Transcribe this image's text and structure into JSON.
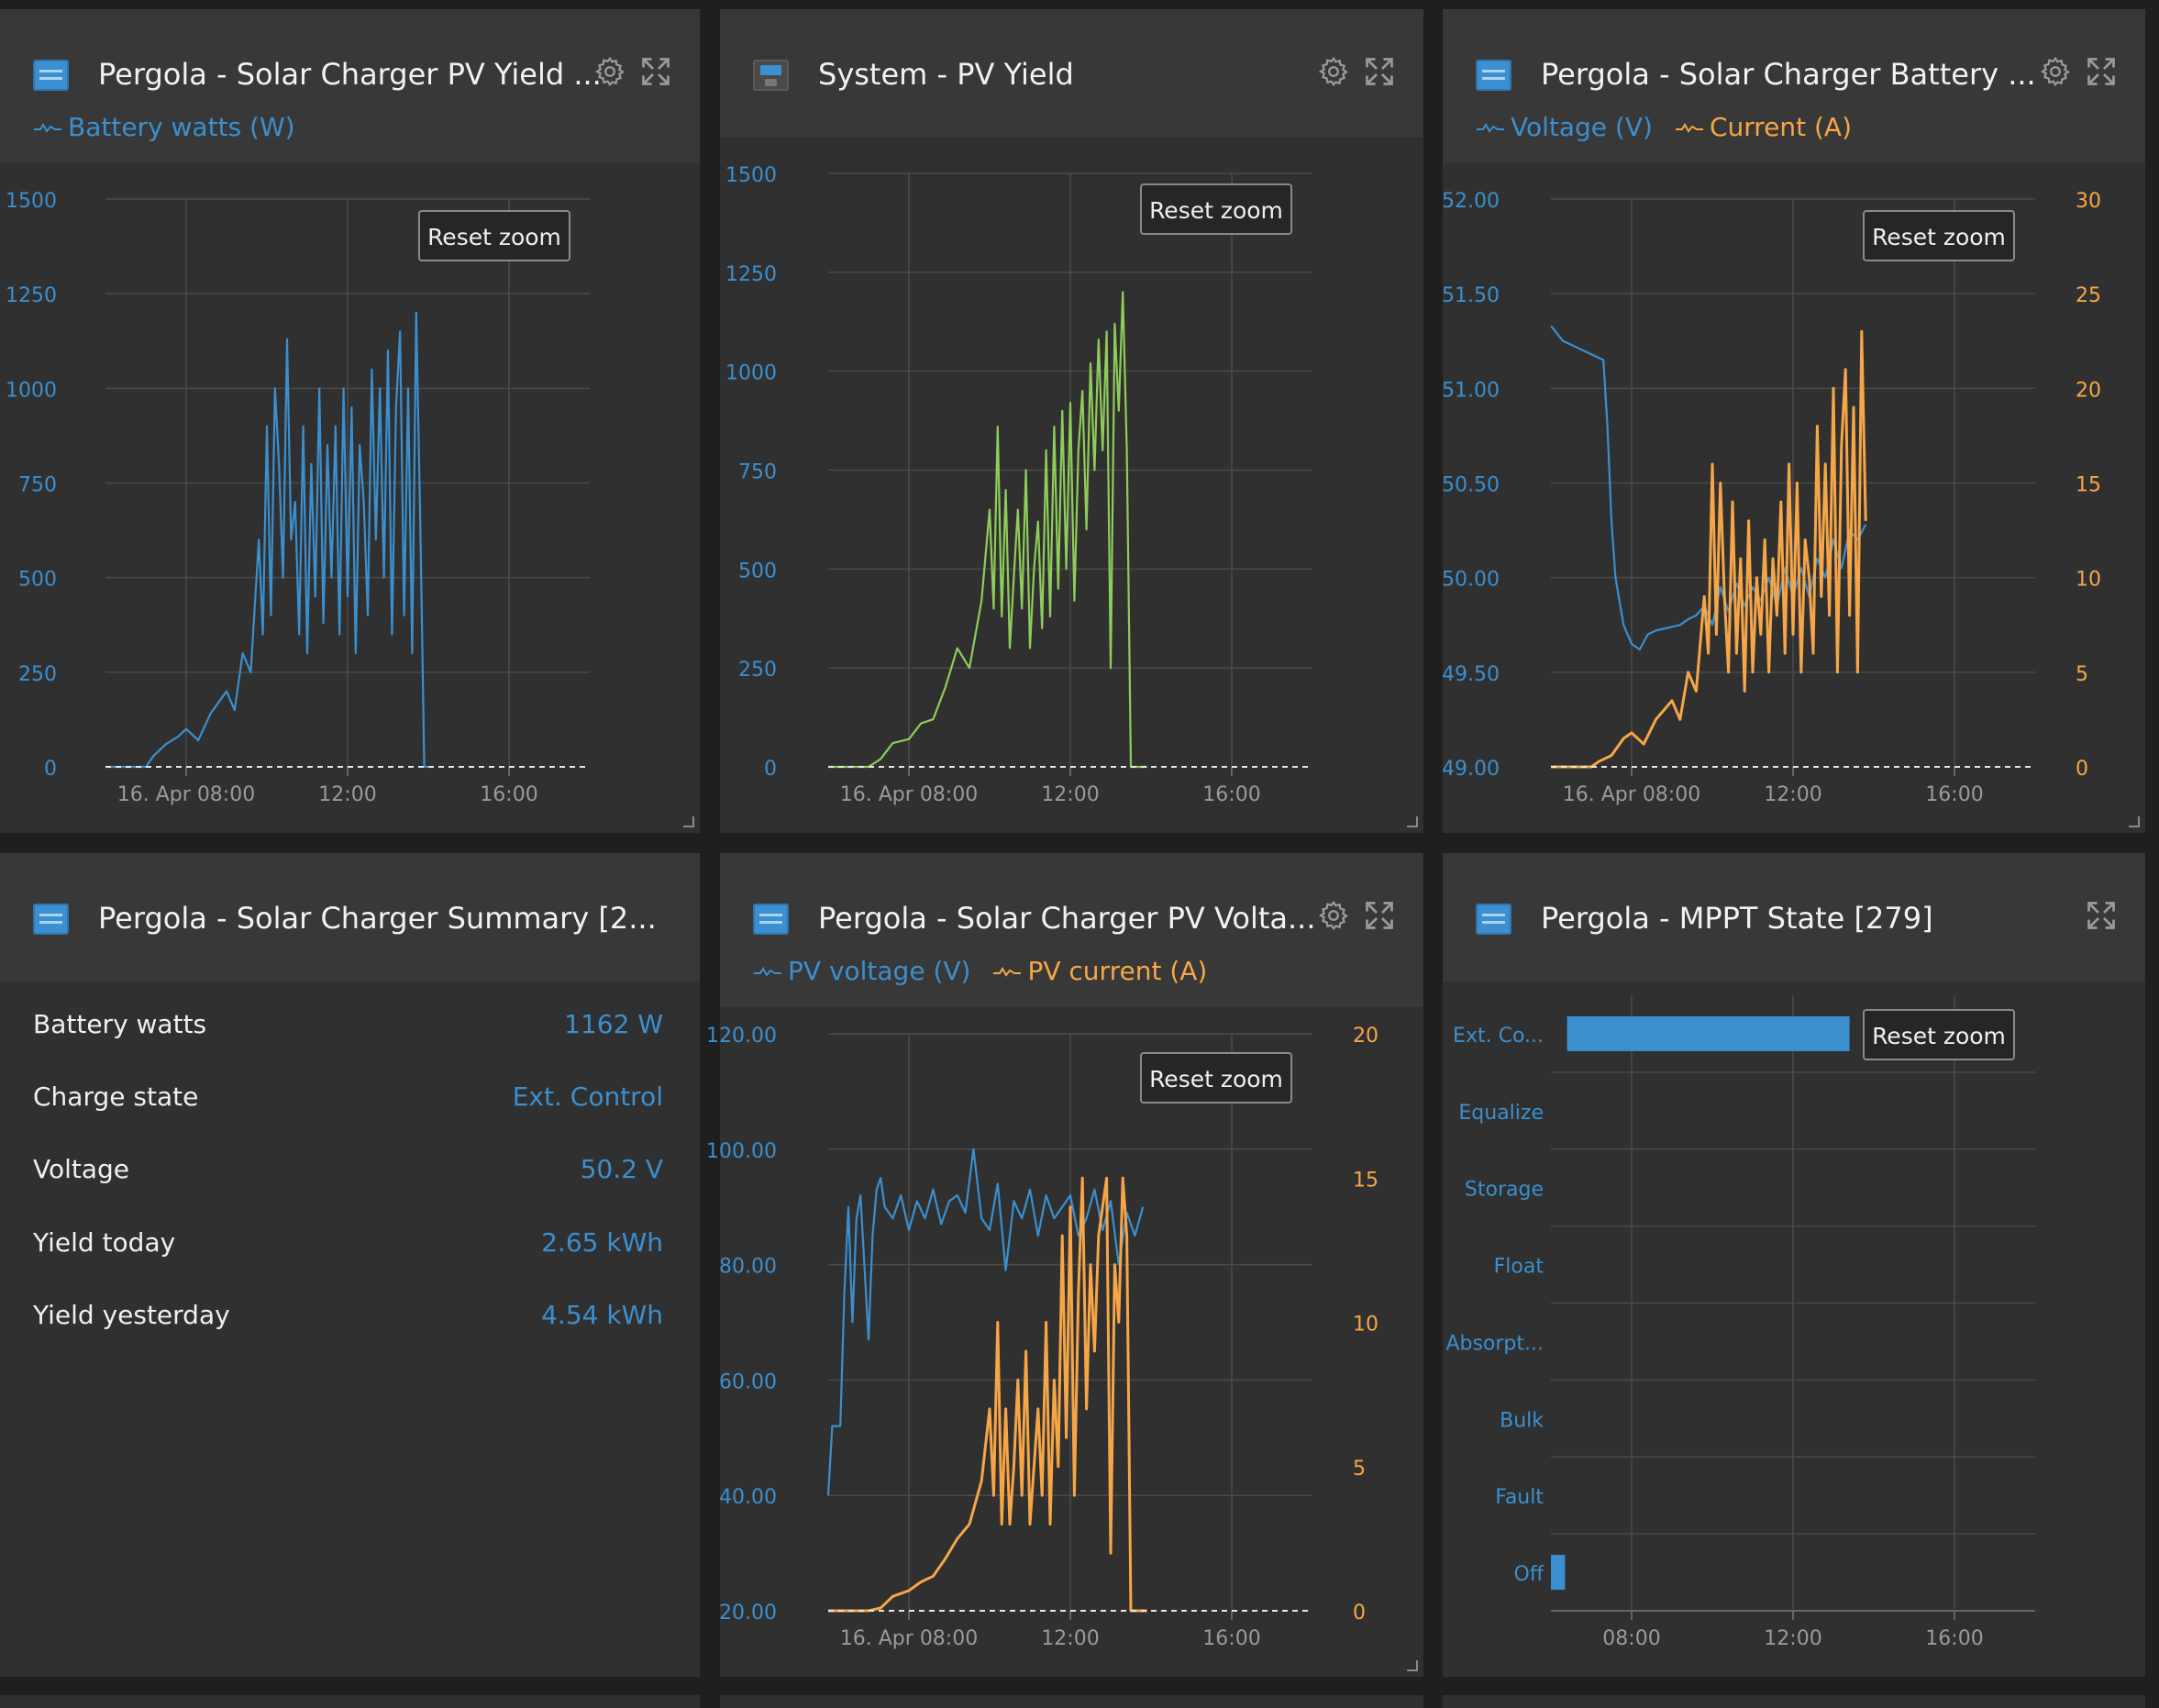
{
  "colors": {
    "blue": "#3b8fce",
    "orange": "#f7a647",
    "green": "#8fcc5a",
    "grid": "#4a4a4a",
    "axis_text_blue": "#3b8fce"
  },
  "widgets": {
    "pv_yield": {
      "title": "Pergola - Solar Charger PV Yield ...",
      "icon": "solar-charger-icon",
      "legend": [
        {
          "label": "Battery watts (W)",
          "color": "#3b8fce"
        }
      ],
      "reset_label": "Reset zoom"
    },
    "system_pv": {
      "title": "System - PV Yield",
      "icon": "system-icon",
      "reset_label": "Reset zoom"
    },
    "battery": {
      "title": "Pergola - Solar Charger Battery ...",
      "icon": "solar-charger-icon",
      "legend": [
        {
          "label": "Voltage (V)",
          "color": "#3b8fce"
        },
        {
          "label": "Current (A)",
          "color": "#f7a647"
        }
      ],
      "reset_label": "Reset zoom"
    },
    "summary": {
      "title": "Pergola - Solar Charger Summary [2...",
      "icon": "solar-charger-icon",
      "rows": [
        {
          "label": "Battery watts",
          "value": "1162 W"
        },
        {
          "label": "Charge state",
          "value": "Ext. Control"
        },
        {
          "label": "Voltage",
          "value": "50.2 V"
        },
        {
          "label": "Yield today",
          "value": "2.65 kWh"
        },
        {
          "label": "Yield yesterday",
          "value": "4.54 kWh"
        }
      ]
    },
    "pv_voltage": {
      "title": "Pergola - Solar Charger PV Volta...",
      "icon": "solar-charger-icon",
      "legend": [
        {
          "label": "PV voltage (V)",
          "color": "#3b8fce"
        },
        {
          "label": "PV current (A)",
          "color": "#f7a647"
        }
      ],
      "reset_label": "Reset zoom"
    },
    "mppt": {
      "title": "Pergola - MPPT State [279]",
      "icon": "solar-charger-icon",
      "reset_label": "Reset zoom"
    }
  },
  "chart_data": [
    {
      "id": "pv_yield",
      "type": "line",
      "title": "Pergola - Solar Charger PV Yield ...",
      "x_tick_labels": [
        "16. Apr 08:00",
        "12:00",
        "16:00"
      ],
      "xlim_hours": [
        6,
        18
      ],
      "ylim": [
        0,
        1500
      ],
      "y_ticks": [
        "0",
        "250",
        "500",
        "750",
        "1000",
        "1250",
        "1500"
      ],
      "series": [
        {
          "name": "Battery watts (W)",
          "color": "#3b8fce",
          "axis": "left",
          "x_hours": [
            6.0,
            7.0,
            7.2,
            7.5,
            7.8,
            8.0,
            8.3,
            8.6,
            9.0,
            9.2,
            9.4,
            9.6,
            9.8,
            9.9,
            10.0,
            10.1,
            10.2,
            10.3,
            10.4,
            10.5,
            10.6,
            10.7,
            10.8,
            10.9,
            11.0,
            11.1,
            11.2,
            11.3,
            11.4,
            11.5,
            11.6,
            11.7,
            11.8,
            11.9,
            12.0,
            12.1,
            12.2,
            12.3,
            12.4,
            12.5,
            12.6,
            12.7,
            12.8,
            12.9,
            13.0,
            13.1,
            13.2,
            13.3,
            13.4,
            13.5,
            13.6,
            13.7,
            13.8,
            13.9,
            14.0
          ],
          "values": [
            0,
            0,
            30,
            60,
            80,
            100,
            70,
            140,
            200,
            150,
            300,
            250,
            600,
            350,
            900,
            400,
            1000,
            800,
            500,
            1130,
            600,
            700,
            350,
            900,
            300,
            800,
            450,
            1000,
            380,
            850,
            500,
            900,
            350,
            1000,
            450,
            950,
            300,
            850,
            700,
            400,
            1050,
            600,
            1000,
            500,
            1100,
            350,
            950,
            1150,
            400,
            1000,
            300,
            1200,
            650,
            0,
            0
          ]
        }
      ]
    },
    {
      "id": "system_pv",
      "type": "line",
      "title": "System - PV Yield",
      "x_tick_labels": [
        "16. Apr 08:00",
        "12:00",
        "16:00"
      ],
      "xlim_hours": [
        6,
        18
      ],
      "ylim": [
        0,
        1500
      ],
      "y_ticks": [
        "0",
        "250",
        "500",
        "750",
        "1000",
        "1250",
        "1500"
      ],
      "series": [
        {
          "name": "PV Yield",
          "color": "#8fcc5a",
          "axis": "left",
          "x_hours": [
            6.0,
            7.0,
            7.3,
            7.6,
            8.0,
            8.3,
            8.6,
            8.9,
            9.2,
            9.5,
            9.8,
            10.0,
            10.1,
            10.2,
            10.3,
            10.4,
            10.5,
            10.6,
            10.7,
            10.8,
            10.9,
            11.0,
            11.1,
            11.2,
            11.3,
            11.4,
            11.5,
            11.6,
            11.7,
            11.8,
            11.9,
            12.0,
            12.1,
            12.2,
            12.3,
            12.4,
            12.5,
            12.6,
            12.7,
            12.8,
            12.9,
            13.0,
            13.1,
            13.2,
            13.3,
            13.4,
            13.5,
            13.6,
            13.7,
            13.8,
            13.9
          ],
          "values": [
            0,
            0,
            20,
            60,
            70,
            110,
            120,
            200,
            300,
            250,
            420,
            650,
            400,
            860,
            380,
            700,
            300,
            480,
            650,
            400,
            750,
            300,
            500,
            620,
            350,
            800,
            380,
            860,
            450,
            900,
            500,
            920,
            420,
            800,
            950,
            600,
            1020,
            750,
            1080,
            800,
            1100,
            250,
            1120,
            900,
            1200,
            800,
            0,
            0,
            0,
            0,
            0
          ]
        }
      ]
    },
    {
      "id": "battery",
      "type": "line",
      "title": "Pergola - Solar Charger Battery ...",
      "x_tick_labels": [
        "16. Apr 08:00",
        "12:00",
        "16:00"
      ],
      "xlim_hours": [
        6,
        18
      ],
      "ylim": [
        49.0,
        52.0
      ],
      "y_ticks": [
        "49.00",
        "49.50",
        "50.00",
        "50.50",
        "51.00",
        "51.50",
        "52.00"
      ],
      "y2lim": [
        0,
        30
      ],
      "y2_ticks": [
        "0",
        "5",
        "10",
        "15",
        "20",
        "25",
        "30"
      ],
      "series": [
        {
          "name": "Voltage (V)",
          "color": "#3b8fce",
          "axis": "left",
          "x_hours": [
            6.0,
            6.3,
            6.6,
            7.0,
            7.3,
            7.4,
            7.5,
            7.6,
            7.8,
            8.0,
            8.2,
            8.4,
            8.6,
            8.8,
            9.0,
            9.2,
            9.4,
            9.6,
            9.8,
            10.0,
            10.2,
            10.4,
            10.6,
            10.8,
            11.0,
            11.2,
            11.4,
            11.6,
            11.8,
            12.0,
            12.2,
            12.4,
            12.6,
            12.8,
            13.0,
            13.2,
            13.4,
            13.6,
            13.8
          ],
          "values": [
            51.33,
            51.25,
            51.22,
            51.18,
            51.15,
            50.8,
            50.3,
            50.0,
            49.75,
            49.65,
            49.62,
            49.7,
            49.72,
            49.73,
            49.74,
            49.75,
            49.78,
            49.8,
            49.85,
            49.75,
            49.95,
            49.82,
            49.97,
            49.85,
            49.95,
            49.88,
            50.0,
            49.85,
            50.05,
            49.9,
            50.05,
            49.9,
            50.1,
            50.0,
            50.2,
            50.05,
            50.25,
            50.2,
            50.28
          ]
        },
        {
          "name": "Current (A)",
          "color": "#f7a647",
          "axis": "right",
          "x_hours": [
            6.0,
            7.0,
            7.2,
            7.5,
            7.8,
            8.0,
            8.3,
            8.6,
            9.0,
            9.2,
            9.4,
            9.6,
            9.8,
            9.9,
            10.0,
            10.1,
            10.2,
            10.3,
            10.4,
            10.5,
            10.6,
            10.7,
            10.8,
            10.9,
            11.0,
            11.1,
            11.2,
            11.3,
            11.4,
            11.5,
            11.6,
            11.7,
            11.8,
            11.9,
            12.0,
            12.1,
            12.2,
            12.3,
            12.4,
            12.5,
            12.6,
            12.7,
            12.8,
            12.9,
            13.0,
            13.1,
            13.2,
            13.3,
            13.4,
            13.5,
            13.6,
            13.7,
            13.8
          ],
          "values": [
            0,
            0,
            0.3,
            0.6,
            1.5,
            1.8,
            1.2,
            2.5,
            3.5,
            2.5,
            5,
            4,
            9,
            6,
            16,
            7,
            15,
            9,
            5,
            14,
            6,
            11,
            4,
            13,
            5,
            10,
            7,
            12,
            5,
            11,
            8,
            14,
            6,
            16,
            7,
            15,
            5,
            12,
            10,
            6,
            18,
            9,
            16,
            8,
            20,
            5,
            17,
            21,
            8,
            19,
            5,
            23,
            13
          ]
        }
      ]
    },
    {
      "id": "pv_voltage",
      "type": "line",
      "title": "Pergola - Solar Charger PV Volta...",
      "x_tick_labels": [
        "16. Apr 08:00",
        "12:00",
        "16:00"
      ],
      "xlim_hours": [
        6,
        18
      ],
      "ylim": [
        20,
        120
      ],
      "y_ticks": [
        "20.00",
        "40.00",
        "60.00",
        "80.00",
        "100.00",
        "120.00"
      ],
      "y2lim": [
        0,
        20
      ],
      "y2_ticks": [
        "0",
        "5",
        "10",
        "15",
        "20"
      ],
      "series": [
        {
          "name": "PV voltage (V)",
          "color": "#3b8fce",
          "axis": "left",
          "x_hours": [
            6.0,
            6.1,
            6.3,
            6.4,
            6.5,
            6.6,
            6.7,
            6.8,
            7.0,
            7.1,
            7.2,
            7.3,
            7.4,
            7.6,
            7.8,
            8.0,
            8.2,
            8.4,
            8.6,
            8.8,
            9.0,
            9.2,
            9.4,
            9.6,
            9.8,
            10.0,
            10.2,
            10.4,
            10.6,
            10.8,
            11.0,
            11.2,
            11.4,
            11.6,
            11.8,
            12.0,
            12.2,
            12.4,
            12.6,
            12.8,
            13.0,
            13.2,
            13.4,
            13.6,
            13.8
          ],
          "values": [
            40,
            52,
            52,
            75,
            90,
            70,
            88,
            92,
            67,
            85,
            93,
            95,
            90,
            88,
            92,
            86,
            91,
            88,
            93,
            87,
            91,
            92,
            89,
            100,
            88,
            86,
            94,
            79,
            91,
            88,
            93,
            85,
            92,
            88,
            90,
            92,
            85,
            88,
            93,
            86,
            91,
            80,
            89,
            85,
            90
          ]
        },
        {
          "name": "PV current (A)",
          "color": "#f7a647",
          "axis": "right",
          "x_hours": [
            6.0,
            7.0,
            7.3,
            7.6,
            8.0,
            8.3,
            8.6,
            8.9,
            9.2,
            9.5,
            9.8,
            10.0,
            10.1,
            10.2,
            10.3,
            10.4,
            10.5,
            10.6,
            10.7,
            10.8,
            10.9,
            11.0,
            11.1,
            11.2,
            11.3,
            11.4,
            11.5,
            11.6,
            11.7,
            11.8,
            11.9,
            12.0,
            12.1,
            12.2,
            12.3,
            12.4,
            12.5,
            12.6,
            12.7,
            12.8,
            12.9,
            13.0,
            13.1,
            13.2,
            13.3,
            13.4,
            13.5,
            13.6,
            13.7,
            13.8,
            13.9
          ],
          "values": [
            0,
            0,
            0.1,
            0.5,
            0.7,
            1.0,
            1.2,
            1.8,
            2.5,
            3,
            4.5,
            7,
            4,
            10,
            3,
            7,
            3,
            5,
            8,
            4,
            9,
            3,
            5,
            7,
            4,
            10,
            3,
            8,
            5,
            13,
            6,
            14,
            4,
            11,
            15,
            7,
            12,
            9,
            13,
            14,
            15,
            2,
            12,
            10,
            15,
            13,
            0,
            0,
            0,
            0,
            0
          ]
        }
      ]
    },
    {
      "id": "mppt",
      "type": "bar",
      "title": "Pergola - MPPT State [279]",
      "categories": [
        "Ext. Co...",
        "Equalize",
        "Storage",
        "Float",
        "Absorpt...",
        "Bulk",
        "Fault",
        "Off"
      ],
      "x_tick_labels": [
        "08:00",
        "12:00",
        "16:00"
      ],
      "xlim_hours": [
        6,
        18
      ],
      "segments": [
        {
          "state": "Ext. Co...",
          "start_h": 6.4,
          "end_h": 13.4
        },
        {
          "state": "Off",
          "start_h": 6.0,
          "end_h": 6.35
        }
      ]
    }
  ]
}
